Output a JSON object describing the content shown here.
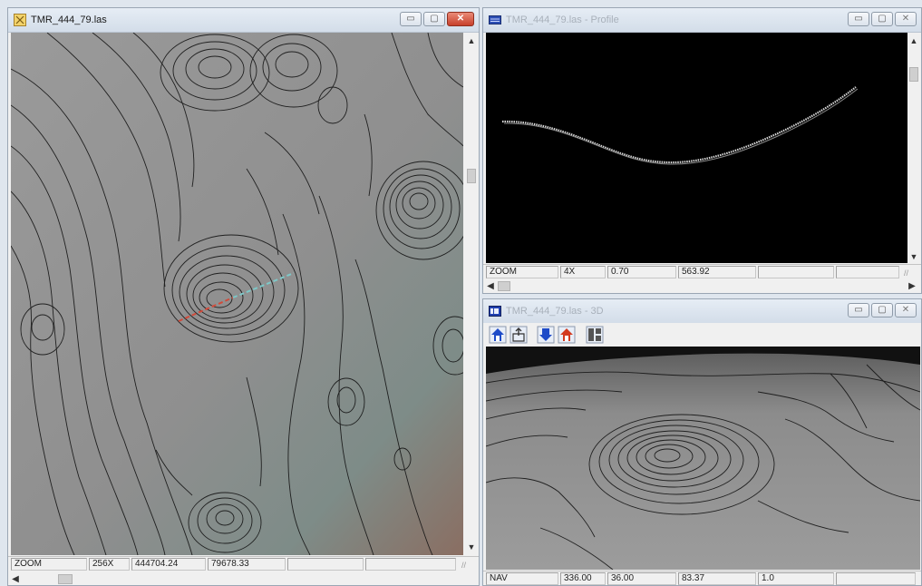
{
  "map_window": {
    "title": "TMR_444_79.las",
    "status": [
      "ZOOM",
      "256X",
      "444704.24",
      "79678.33",
      "",
      ""
    ],
    "scroll_up": "▲",
    "scroll_down": "▼",
    "scroll_left": "◀",
    "grip": "//"
  },
  "profile_window": {
    "title": "TMR_444_79.las - Profile",
    "status": [
      "ZOOM",
      "4X",
      "0.70",
      "563.92",
      "",
      ""
    ],
    "scroll_up": "▲",
    "scroll_down": "▼",
    "scroll_left": "◀",
    "scroll_right": "▶",
    "grip": "//"
  },
  "view3d_window": {
    "title": "TMR_444_79.las - 3D",
    "status": [
      "NAV",
      "336.00",
      "36.00",
      "83.37",
      "1.0",
      ""
    ]
  },
  "window_buttons": {
    "minimize": "▭",
    "maximize": "▢",
    "close": "✕"
  },
  "colors": {
    "profile_background": "#000000",
    "terrain": "#8e8e8e",
    "contour": "#141414",
    "profile_line_red": "#d04a3a",
    "profile_line_cyan": "#7ec8c8",
    "close_button": "#c7402b",
    "toolbar_blue": "#1e4bc8",
    "toolbar_red": "#d33a1f"
  },
  "icons": [
    "map-window-icon",
    "profile-window-icon",
    "3d-window-icon",
    "home-view-icon",
    "export-icon",
    "down-arrow-icon",
    "up-home-icon",
    "layout-icon"
  ]
}
